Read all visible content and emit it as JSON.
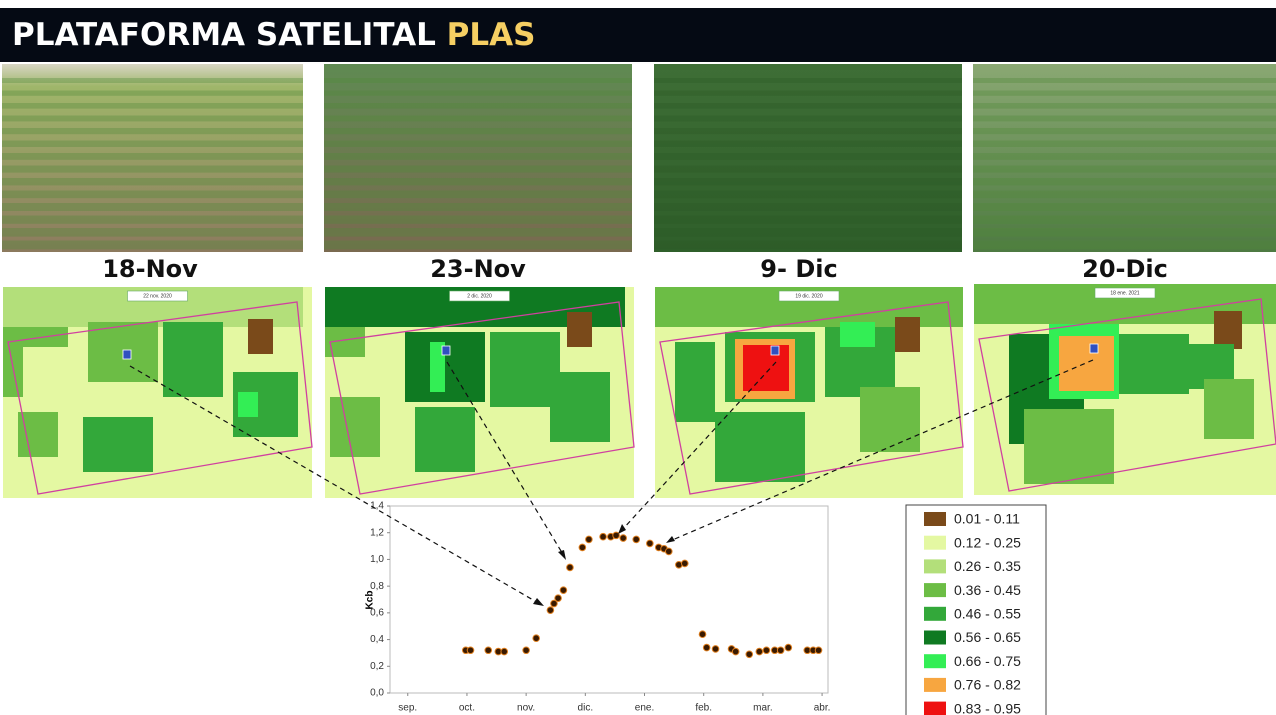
{
  "header": {
    "title": "PLATAFORMA SATELITAL",
    "highlight": "PLAS"
  },
  "panels": [
    {
      "caption": "18-Nov",
      "map_date": "22 nov. 2020"
    },
    {
      "caption": "23-Nov",
      "map_date": "2 dic. 2020"
    },
    {
      "caption": "9- Dic",
      "map_date": "19 dic. 2020"
    },
    {
      "caption": "20-Dic",
      "map_date": "18 ene. 2021"
    }
  ],
  "legend": [
    {
      "label": "0.01 - 0.11",
      "color": "#7a4a1a"
    },
    {
      "label": "0.12 - 0.25",
      "color": "#e4f8a2"
    },
    {
      "label": "0.26 - 0.35",
      "color": "#b3df7a"
    },
    {
      "label": "0.36 - 0.45",
      "color": "#6cbd45"
    },
    {
      "label": "0.46 - 0.55",
      "color": "#33a83a"
    },
    {
      "label": "0.56 - 0.65",
      "color": "#0f7a22"
    },
    {
      "label": "0.66 - 0.75",
      "color": "#33ee55"
    },
    {
      "label": "0.76 - 0.82",
      "color": "#f7a640"
    },
    {
      "label": "0.83 - 0.95",
      "color": "#ee1111"
    }
  ],
  "chart_data": {
    "type": "scatter",
    "ylabel": "Kcb",
    "series": [
      {
        "name": "Kcb",
        "color": "#3a1a00",
        "x": [
          0.98,
          1.06,
          1.36,
          1.53,
          1.63,
          2.0,
          2.17,
          2.41,
          2.47,
          2.54,
          2.63,
          2.74,
          2.95,
          3.06,
          3.3,
          3.43,
          3.52,
          3.64,
          3.86,
          4.09,
          4.24,
          4.33,
          4.41,
          4.58,
          4.68,
          4.98,
          5.05,
          5.2,
          5.47,
          5.54,
          5.77,
          5.94,
          6.06,
          6.2,
          6.3,
          6.43,
          6.75,
          6.85,
          6.94
        ],
        "values": [
          0.32,
          0.32,
          0.32,
          0.31,
          0.31,
          0.32,
          0.41,
          0.62,
          0.67,
          0.71,
          0.77,
          0.94,
          1.09,
          1.15,
          1.17,
          1.17,
          1.18,
          1.16,
          1.15,
          1.12,
          1.09,
          1.08,
          1.06,
          0.96,
          0.97,
          0.44,
          0.34,
          0.33,
          0.33,
          0.31,
          0.29,
          0.31,
          0.32,
          0.32,
          0.32,
          0.34,
          0.32,
          0.32,
          0.32
        ]
      }
    ],
    "xlim": [
      -0.3,
      7.1
    ],
    "xticks": [
      {
        "value": 0,
        "label": "sep."
      },
      {
        "value": 1,
        "label": "oct."
      },
      {
        "value": 2,
        "label": "nov."
      },
      {
        "value": 3,
        "label": "dic."
      },
      {
        "value": 4,
        "label": "ene."
      },
      {
        "value": 5,
        "label": "feb."
      },
      {
        "value": 6,
        "label": "mar."
      },
      {
        "value": 7,
        "label": "abr."
      }
    ],
    "ylim": [
      0,
      1.4
    ],
    "yticks": [
      {
        "value": 0,
        "label": "0,0"
      },
      {
        "value": 0.2,
        "label": "0,2"
      },
      {
        "value": 0.4,
        "label": "0,4"
      },
      {
        "value": 0.6,
        "label": "0,6"
      },
      {
        "value": 0.8,
        "label": "0,8"
      },
      {
        "value": 1.0,
        "label": "1,0"
      },
      {
        "value": 1.2,
        "label": "1,2"
      },
      {
        "value": 1.4,
        "label": "1,4"
      }
    ],
    "grid": false
  }
}
